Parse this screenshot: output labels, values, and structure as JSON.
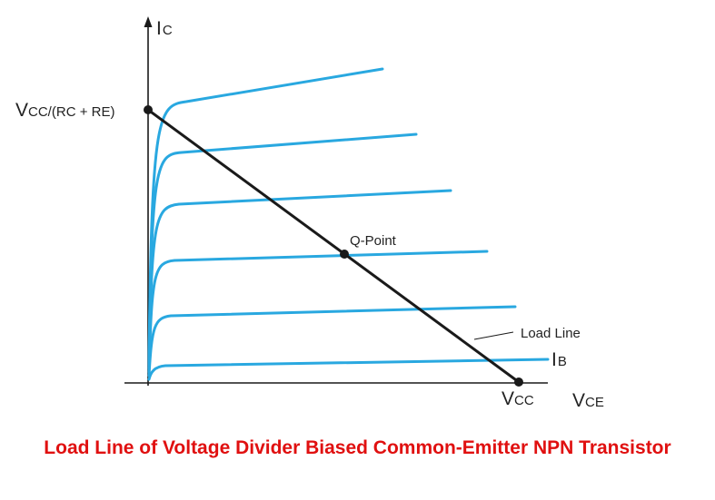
{
  "labels": {
    "y_axis_main": "I",
    "y_axis_sub": "C",
    "x_axis_main": "V",
    "x_axis_sub": "CE",
    "intercept_y_main": "V",
    "intercept_y_part1": "CC/(R",
    "intercept_y_sub_c": "C",
    "intercept_y_part2": " + R",
    "intercept_y_sub_e": "E",
    "intercept_y_close": ")",
    "intercept_x_main": "V",
    "intercept_x_sub": "CC",
    "q_point": "Q-Point",
    "load_line": "Load Line",
    "base_current_main": "I",
    "base_current_sub": "B"
  },
  "title": "Load Line of Voltage Divider Biased Common-Emitter NPN Transistor",
  "colors": {
    "curves": "#29a8e0",
    "load_line": "#1a1a1a",
    "title": "#e01010",
    "axes": "#1a1a1a"
  },
  "characteristic_curve_count": 6
}
